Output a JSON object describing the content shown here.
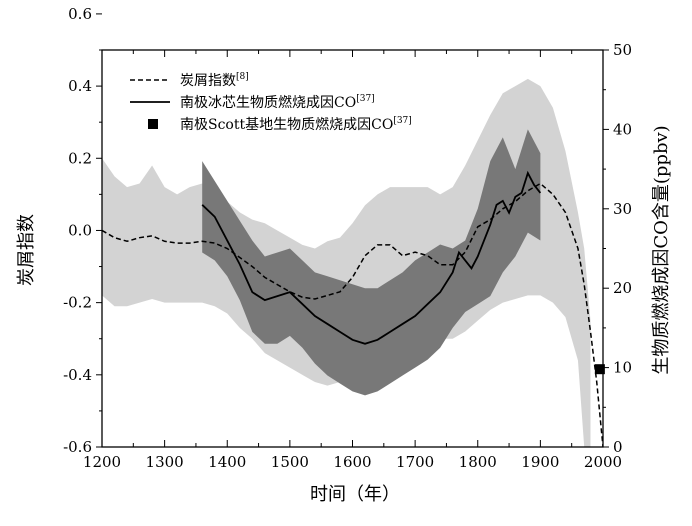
{
  "chart_data": {
    "type": "line",
    "xlabel": "时间（年）",
    "ylabel_left": "炭屑指数",
    "ylabel_right": "生物质燃烧成因CO含量(ppbv)",
    "xlim": [
      1200,
      2000
    ],
    "ylim_left": [
      -0.6,
      0.5
    ],
    "ylim_right": [
      0,
      50
    ],
    "x_ticks": [
      1200,
      1300,
      1400,
      1500,
      1600,
      1700,
      1800,
      1900,
      2000
    ],
    "y_left_ticks": [
      -0.6,
      -0.4,
      -0.2,
      0.0,
      0.2,
      0.4,
      0.6
    ],
    "y_left_tick_labels": [
      "-0.6",
      "-0.4",
      "-0.2",
      "0.0",
      "0.2",
      "0.4",
      "0.6"
    ],
    "y_right_ticks": [
      0,
      10,
      20,
      30,
      40,
      50
    ],
    "legend": [
      {
        "label": "炭屑指数",
        "ref": "[8]",
        "style": "dashed line"
      },
      {
        "label": "南极冰芯生物质燃烧成因CO",
        "ref": "[37]",
        "style": "solid line"
      },
      {
        "label": "南极Scott基地生物质燃烧成因CO",
        "ref": "[37]",
        "style": "filled square"
      }
    ],
    "legend_position": "top-left",
    "series": [
      {
        "key": "charcoal",
        "axis": "left",
        "x": [
          1200,
          1220,
          1240,
          1260,
          1280,
          1300,
          1320,
          1340,
          1360,
          1380,
          1400,
          1420,
          1440,
          1460,
          1480,
          1500,
          1520,
          1540,
          1560,
          1580,
          1600,
          1620,
          1640,
          1660,
          1680,
          1700,
          1720,
          1740,
          1760,
          1780,
          1800,
          1820,
          1840,
          1860,
          1880,
          1900,
          1920,
          1940,
          1960,
          1970,
          1980,
          1990,
          2000
        ],
        "y": [
          0.0,
          -0.02,
          -0.03,
          -0.02,
          -0.015,
          -0.03,
          -0.035,
          -0.035,
          -0.03,
          -0.035,
          -0.05,
          -0.075,
          -0.1,
          -0.13,
          -0.15,
          -0.17,
          -0.185,
          -0.19,
          -0.18,
          -0.17,
          -0.13,
          -0.07,
          -0.04,
          -0.04,
          -0.07,
          -0.06,
          -0.07,
          -0.095,
          -0.095,
          -0.06,
          0.01,
          0.03,
          0.06,
          0.08,
          0.11,
          0.13,
          0.1,
          0.05,
          -0.05,
          -0.15,
          -0.28,
          -0.42,
          -0.6
        ]
      },
      {
        "key": "co_ice_core",
        "axis": "right",
        "x": [
          1360,
          1380,
          1400,
          1420,
          1440,
          1460,
          1480,
          1500,
          1520,
          1540,
          1560,
          1580,
          1600,
          1620,
          1640,
          1660,
          1680,
          1700,
          1720,
          1740,
          1760,
          1770,
          1780,
          1790,
          1800,
          1810,
          1820,
          1830,
          1840,
          1850,
          1860,
          1870,
          1880,
          1890,
          1900
        ],
        "y": [
          30.5,
          29,
          26,
          23,
          19.5,
          18.5,
          19,
          19.5,
          18,
          16.5,
          15.5,
          14.5,
          13.5,
          13,
          13.5,
          14.5,
          15.5,
          16.5,
          18,
          19.5,
          22,
          24.5,
          23.5,
          22.5,
          24,
          26,
          28,
          30.5,
          31,
          29.5,
          31.5,
          32,
          34.5,
          33,
          32
        ]
      },
      {
        "key": "co_scott_base",
        "axis": "right",
        "x": [
          1995
        ],
        "y": [
          9.8
        ]
      }
    ],
    "bands": [
      {
        "key": "charcoal_envelope",
        "color": "#d3d3d3",
        "axis": "left",
        "x": [
          1200,
          1220,
          1240,
          1260,
          1280,
          1300,
          1320,
          1340,
          1360,
          1380,
          1400,
          1420,
          1440,
          1460,
          1480,
          1500,
          1520,
          1540,
          1560,
          1580,
          1600,
          1620,
          1640,
          1660,
          1680,
          1700,
          1720,
          1740,
          1760,
          1780,
          1800,
          1820,
          1840,
          1860,
          1880,
          1900,
          1920,
          1940,
          1960,
          1970,
          1980
        ],
        "upper": [
          0.2,
          0.15,
          0.12,
          0.13,
          0.18,
          0.12,
          0.1,
          0.12,
          0.13,
          0.1,
          0.08,
          0.05,
          0.03,
          0.02,
          0.0,
          -0.02,
          -0.04,
          -0.05,
          -0.03,
          -0.02,
          0.02,
          0.07,
          0.1,
          0.12,
          0.12,
          0.12,
          0.12,
          0.1,
          0.12,
          0.18,
          0.25,
          0.32,
          0.38,
          0.4,
          0.42,
          0.4,
          0.34,
          0.22,
          0.05,
          -0.05,
          -0.25
        ],
        "lower": [
          -0.18,
          -0.21,
          -0.21,
          -0.2,
          -0.19,
          -0.2,
          -0.2,
          -0.2,
          -0.2,
          -0.21,
          -0.23,
          -0.27,
          -0.3,
          -0.34,
          -0.36,
          -0.38,
          -0.4,
          -0.42,
          -0.43,
          -0.42,
          -0.38,
          -0.32,
          -0.3,
          -0.32,
          -0.35,
          -0.33,
          -0.32,
          -0.3,
          -0.3,
          -0.28,
          -0.25,
          -0.22,
          -0.2,
          -0.19,
          -0.18,
          -0.18,
          -0.2,
          -0.24,
          -0.36,
          -0.6,
          -0.6
        ]
      },
      {
        "key": "co_envelope",
        "color": "#787878",
        "axis": "right",
        "x": [
          1360,
          1380,
          1400,
          1420,
          1440,
          1460,
          1480,
          1500,
          1520,
          1540,
          1560,
          1580,
          1600,
          1620,
          1640,
          1660,
          1680,
          1700,
          1720,
          1740,
          1760,
          1780,
          1800,
          1820,
          1840,
          1860,
          1880,
          1900
        ],
        "upper": [
          36,
          33.5,
          31,
          28.5,
          26,
          24,
          24.5,
          25,
          23.5,
          22,
          21.5,
          21,
          20.5,
          20,
          20,
          21,
          22,
          23.5,
          24.5,
          25.5,
          25,
          26,
          30,
          36,
          39,
          35,
          40,
          37
        ],
        "lower": [
          24.5,
          23.5,
          21.5,
          18.5,
          14.5,
          13,
          13,
          14,
          12.5,
          10.5,
          9,
          8,
          7,
          6.5,
          7,
          8,
          9,
          10,
          11,
          12.5,
          15,
          17,
          18,
          19,
          22,
          24,
          27,
          26
        ]
      }
    ]
  }
}
